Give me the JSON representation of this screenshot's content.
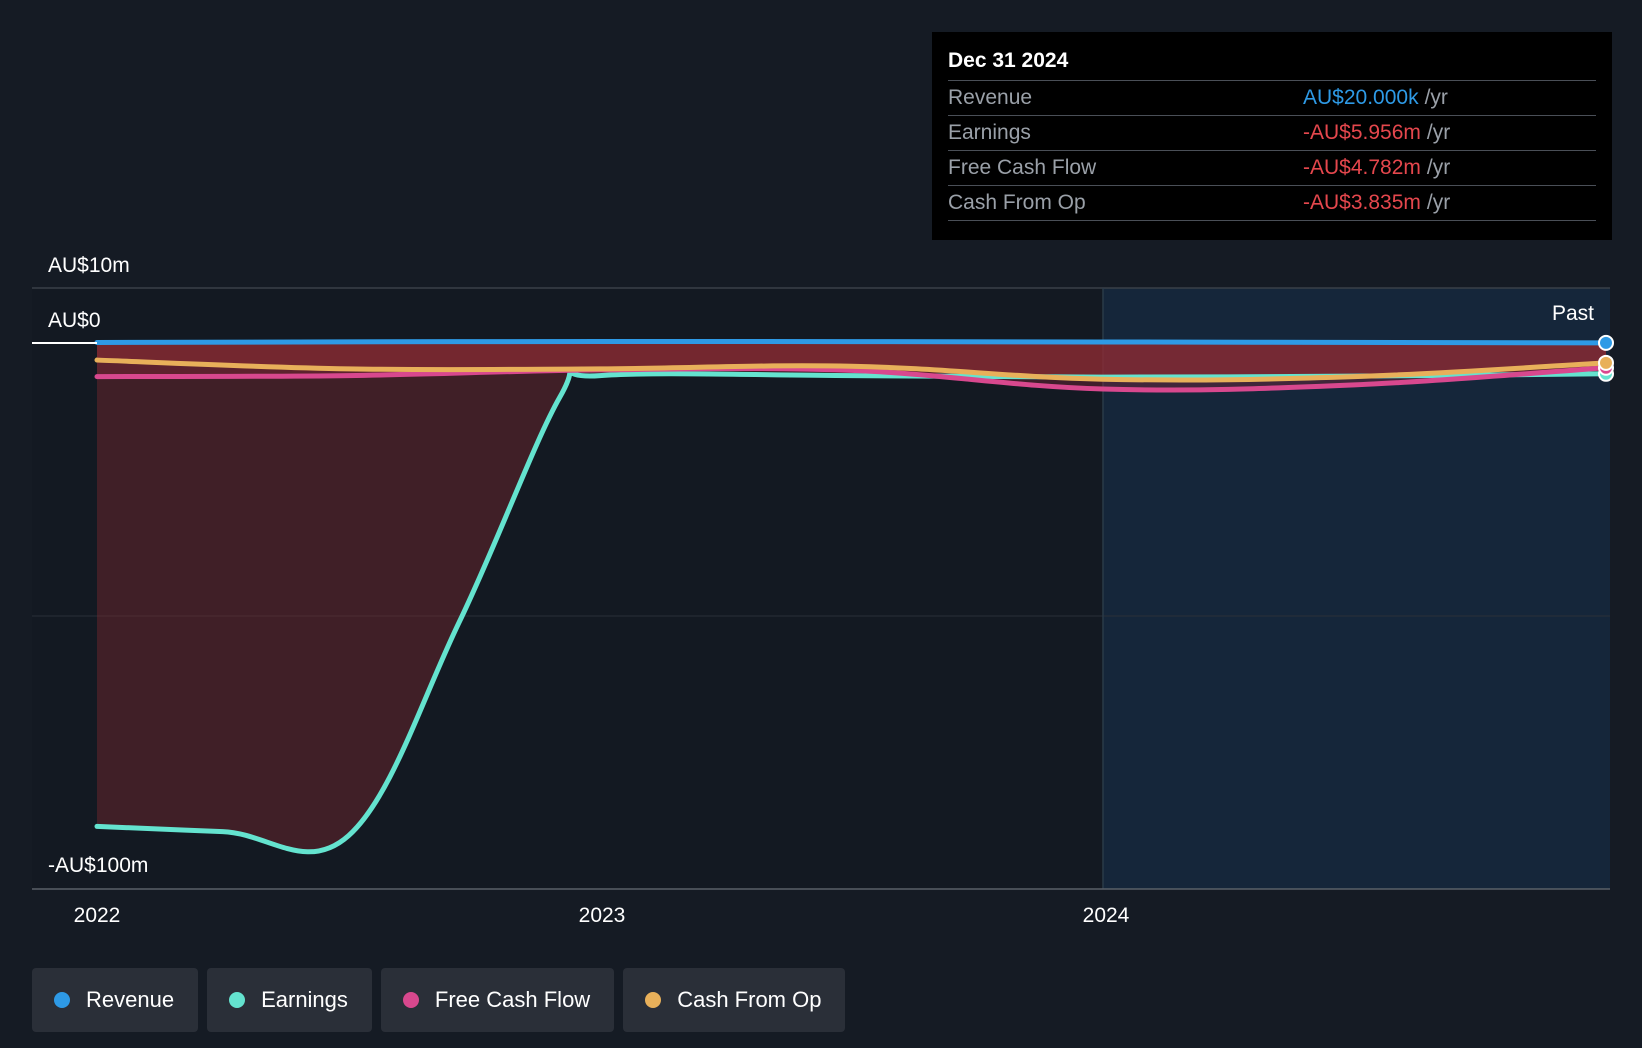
{
  "chart_data": {
    "type": "line",
    "x_ticks": [
      "2022",
      "2023",
      "2024"
    ],
    "y_ticks": [
      "AU$10m",
      "AU$0",
      "-AU$100m"
    ],
    "ylim": [
      -100,
      10
    ],
    "xlim": [
      2022.0,
      2025.0
    ],
    "past_label": "Past",
    "past_start": 2024.0,
    "series": [
      {
        "name": "Revenue",
        "color": "#2e9ae6",
        "x": [
          2022.0,
          2023.0,
          2024.0,
          2025.0
        ],
        "y": [
          0.1,
          0.3,
          0.2,
          0.02
        ]
      },
      {
        "name": "Earnings",
        "color": "#64e3cf",
        "x": [
          2022.0,
          2022.25,
          2022.5,
          2022.72,
          2022.92,
          2023.0,
          2023.5,
          2024.0,
          2024.5,
          2025.0
        ],
        "y": [
          -93.5,
          -94.5,
          -95.3,
          -54.0,
          -10.5,
          -6.3,
          -6.3,
          -6.6,
          -6.4,
          -5.956
        ]
      },
      {
        "name": "Free Cash Flow",
        "color": "#d8488e",
        "x": [
          2022.0,
          2022.5,
          2023.0,
          2023.5,
          2024.0,
          2024.5,
          2025.0
        ],
        "y": [
          -6.5,
          -6.3,
          -5.2,
          -5.3,
          -8.9,
          -8.1,
          -4.782
        ]
      },
      {
        "name": "Cash From Op",
        "color": "#e8b05a",
        "x": [
          2022.0,
          2022.5,
          2023.0,
          2023.5,
          2024.0,
          2024.5,
          2025.0
        ],
        "y": [
          -3.3,
          -5.0,
          -5.0,
          -4.5,
          -7.0,
          -6.5,
          -3.835
        ]
      }
    ]
  },
  "tooltip": {
    "date": "Dec 31 2024",
    "rows": [
      {
        "label": "Revenue",
        "value": "AU$20.000k",
        "unit": "/yr",
        "color": "#2e9ae6"
      },
      {
        "label": "Earnings",
        "value": "-AU$5.956m",
        "unit": "/yr",
        "color": "#e5474d"
      },
      {
        "label": "Free Cash Flow",
        "value": "-AU$4.782m",
        "unit": "/yr",
        "color": "#e5474d"
      },
      {
        "label": "Cash From Op",
        "value": "-AU$3.835m",
        "unit": "/yr",
        "color": "#e5474d"
      }
    ]
  },
  "legend": [
    {
      "label": "Revenue",
      "color": "#2e9ae6"
    },
    {
      "label": "Earnings",
      "color": "#64e3cf"
    },
    {
      "label": "Free Cash Flow",
      "color": "#d8488e"
    },
    {
      "label": "Cash From Op",
      "color": "#e8b05a"
    }
  ]
}
